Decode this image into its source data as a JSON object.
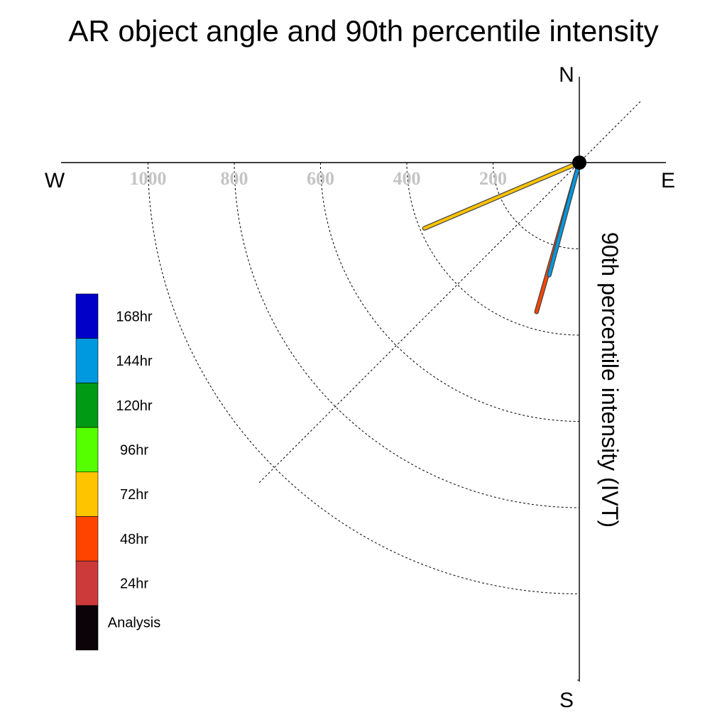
{
  "chart_data": {
    "type": "polar-vector",
    "title": "AR object angle and 90th percentile intensity",
    "radial_axis_label": "90th percentile intensity (IVT)",
    "compass": {
      "north": "N",
      "south": "S",
      "east": "E",
      "west": "W"
    },
    "ring_values": [
      200,
      400,
      600,
      800,
      1000
    ],
    "ring_labels": [
      "200",
      "400",
      "600",
      "800",
      "1000"
    ],
    "max_radius_value": 1200,
    "legend": [
      {
        "label": "168hr",
        "color": "#0000c8"
      },
      {
        "label": "144hr",
        "color": "#0099e0"
      },
      {
        "label": "120hr",
        "color": "#009a14"
      },
      {
        "label": "96hr",
        "color": "#55ff00"
      },
      {
        "label": "72hr",
        "color": "#ffc400"
      },
      {
        "label": "48hr",
        "color": "#ff4400"
      },
      {
        "label": "24hr",
        "color": "#cc3a3a"
      },
      {
        "label": "Analysis",
        "color": "#0c0308"
      }
    ],
    "vectors": [
      {
        "lead": "72hr",
        "angle_deg": 247,
        "intensity": 390,
        "color": "#ffc400"
      },
      {
        "lead": "48hr",
        "angle_deg": 196,
        "intensity": 360,
        "color": "#ff4400"
      },
      {
        "lead": "144hr",
        "angle_deg": 195,
        "intensity": 270,
        "color": "#0099e0"
      }
    ]
  }
}
